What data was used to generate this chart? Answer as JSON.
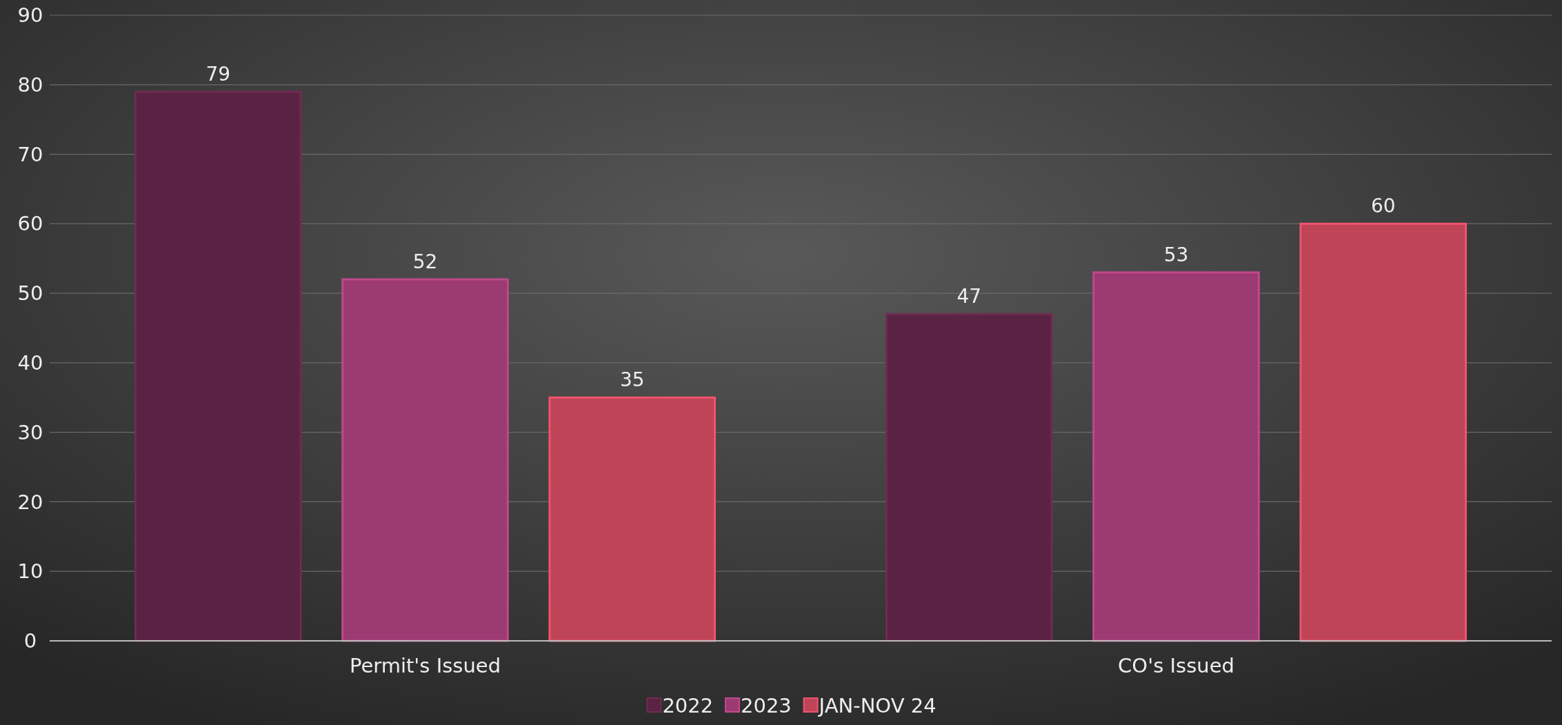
{
  "chart_data": {
    "type": "bar",
    "categories": [
      "Permit's Issued",
      "CO's Issued"
    ],
    "series": [
      {
        "name": "2022",
        "color": "#5a2343",
        "values": [
          79,
          47
        ]
      },
      {
        "name": "2023",
        "color": "#9c3a72",
        "values": [
          52,
          53
        ]
      },
      {
        "name": "JAN-NOV 24",
        "color": "#c04458",
        "values": [
          35,
          60
        ]
      }
    ],
    "ylim": [
      0,
      90
    ],
    "yticks": [
      0,
      10,
      20,
      30,
      40,
      50,
      60,
      70,
      80,
      90
    ],
    "grid": "y",
    "legend": "bottom",
    "data_labels": true
  }
}
